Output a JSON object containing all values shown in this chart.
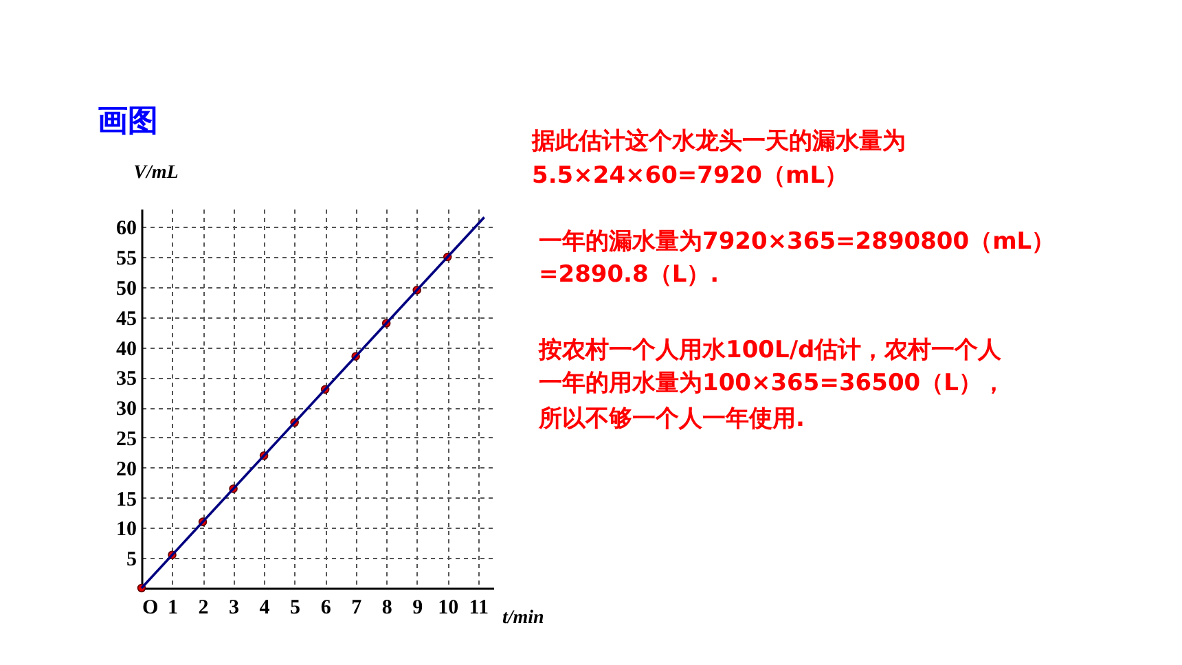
{
  "chart_data": {
    "type": "scatter",
    "title": "画图",
    "xlabel": "t/min",
    "ylabel": "V/mL",
    "x": [
      0,
      1,
      2,
      3,
      4,
      5,
      6,
      7,
      8,
      9,
      10
    ],
    "series": [
      {
        "color": "#e00000",
        "values": [
          0,
          5.5,
          11,
          16.5,
          22,
          27.5,
          33,
          38.5,
          44,
          49.5,
          55
        ],
        "marker": "circle"
      },
      {
        "type": "line",
        "color": "#000080",
        "x": [
          0,
          11.2
        ],
        "values": [
          0,
          61.6
        ],
        "marker": "none",
        "line_style": "solid"
      }
    ],
    "xlim": [
      0,
      11.5
    ],
    "ylim": [
      0,
      63
    ],
    "xticks": [
      {
        "value": 0,
        "label": "O"
      },
      1,
      2,
      3,
      4,
      5,
      6,
      7,
      8,
      9,
      10,
      11
    ],
    "yticks": [
      {
        "value": 0,
        "label": null
      },
      5,
      10,
      15,
      20,
      25,
      30,
      35,
      40,
      45,
      50,
      55,
      60
    ],
    "grid": true,
    "annotations": [
      "据此估计这个水龙头一天的漏水量为",
      "5.5×24×60=7920（mL）",
      "一年的漏水量为7920×365=2890800（mL）",
      "=2890.8（L）.",
      "按农村一个人用水100L/d估计，农村一个人",
      "一年的用水量为100×365=36500（L），",
      "所以不够一个人一年使用."
    ]
  }
}
